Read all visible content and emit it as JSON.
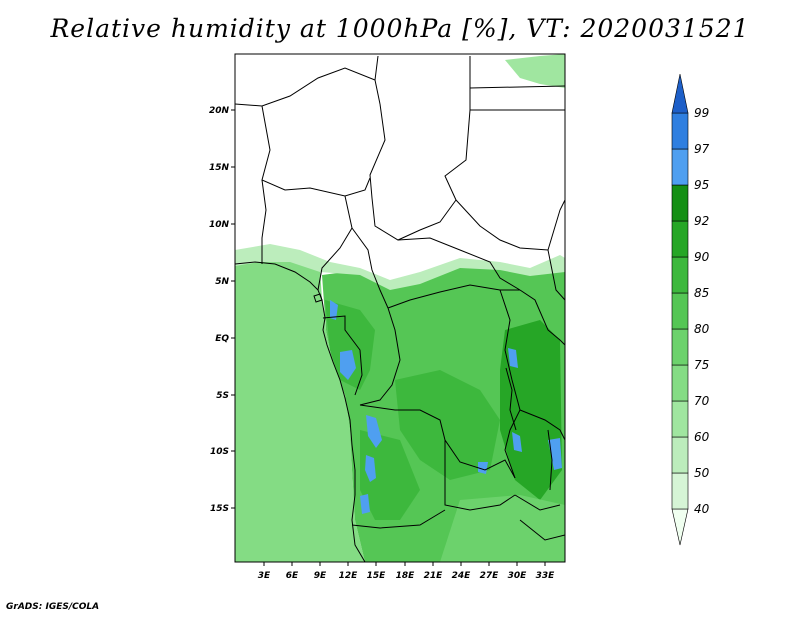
{
  "title": "Relative humidity at 1000hPa [%], VT: 2020031521",
  "credit": "GrADS: IGES/COLA",
  "axes": {
    "lat_labels": [
      "20N",
      "15N",
      "10N",
      "5N",
      "EQ",
      "5S",
      "10S",
      "15S"
    ],
    "lon_labels": [
      "3E",
      "6E",
      "9E",
      "12E",
      "15E",
      "18E",
      "21E",
      "24E",
      "27E",
      "30E",
      "33E"
    ]
  },
  "colorbar": {
    "levels": [
      "40",
      "50",
      "60",
      "70",
      "75",
      "80",
      "85",
      "90",
      "92",
      "95",
      "97",
      "99"
    ],
    "colors": [
      "#f0fff0",
      "#d6f5d6",
      "#bcedbc",
      "#a0e6a0",
      "#84dc84",
      "#6cd26c",
      "#55c655",
      "#3db83d",
      "#26a626",
      "#158f15",
      "#4f9ff0",
      "#2f7fe0",
      "#1d5fc8"
    ]
  }
}
